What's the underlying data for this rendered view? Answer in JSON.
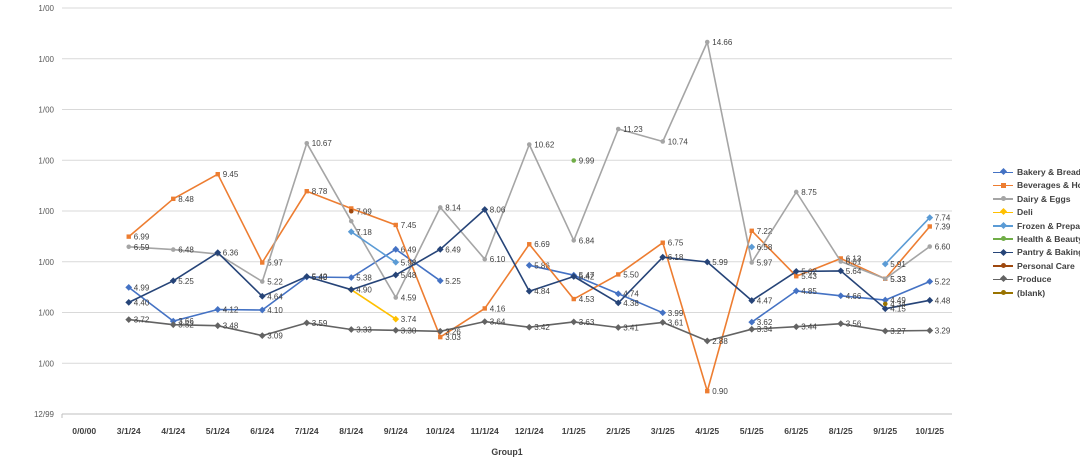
{
  "page": {
    "background": "#FFFFFF"
  },
  "chart_data": {
    "type": "line",
    "title": "",
    "xlabel": "Group1",
    "ylabel": "",
    "grid": true,
    "legend_position": "right",
    "categories": [
      "0/0/00",
      "3/1/24",
      "4/1/24",
      "5/1/24",
      "6/1/24",
      "7/1/24",
      "8/1/24",
      "9/1/24",
      "10/1/24",
      "11/1/24",
      "12/1/24",
      "1/1/25",
      "2/1/25",
      "3/1/25",
      "4/1/25",
      "5/1/25",
      "6/1/25",
      "8/1/25",
      "9/1/25",
      "10/1/25"
    ],
    "y_axis": {
      "min": 0,
      "max": 16,
      "tick_step": 2,
      "tick_labels_top_to_bottom": [
        "1/00",
        "1/00",
        "1/00",
        "1/00",
        "1/00",
        "1/00",
        "1/00",
        "1/00",
        "12/99"
      ]
    },
    "series": [
      {
        "name": "Bakery & Bread",
        "color": "#4472C4",
        "marker": "diamond",
        "values": [
          null,
          4.99,
          3.66,
          4.12,
          4.1,
          5.4,
          5.38,
          6.49,
          5.25,
          null,
          5.86,
          5.47,
          4.74,
          3.99,
          null,
          3.62,
          4.85,
          4.66,
          4.49,
          5.22
        ],
        "label_skip": []
      },
      {
        "name": "Beverages & Household",
        "color": "#ED7D31",
        "marker": "square",
        "values": [
          null,
          6.99,
          8.48,
          9.45,
          5.97,
          8.78,
          8.1,
          7.45,
          3.03,
          4.16,
          6.69,
          4.53,
          5.5,
          6.75,
          0.9,
          7.22,
          5.43,
          6.13,
          5.33,
          7.39
        ],
        "label_skip": [
          6
        ]
      },
      {
        "name": "Dairy & Eggs",
        "color": "#A5A5A5",
        "marker": "circle",
        "values": [
          null,
          6.59,
          6.48,
          6.3,
          5.22,
          10.67,
          7.6,
          4.59,
          8.14,
          6.1,
          10.62,
          6.84,
          11.23,
          10.74,
          14.66,
          5.97,
          8.75,
          6.01,
          5.33,
          6.6
        ],
        "label_skip": [
          3,
          6
        ]
      },
      {
        "name": "Deli",
        "color": "#FFC000",
        "marker": "diamond",
        "values": [
          null,
          null,
          null,
          null,
          null,
          null,
          4.9,
          3.74,
          null,
          null,
          null,
          null,
          null,
          null,
          null,
          null,
          null,
          null,
          null,
          null
        ],
        "label_skip": [
          6
        ]
      },
      {
        "name": "Frozen & Prepared",
        "color": "#5B9BD5",
        "marker": "diamond",
        "values": [
          null,
          null,
          null,
          null,
          null,
          null,
          7.18,
          5.98,
          null,
          null,
          null,
          null,
          null,
          null,
          null,
          6.58,
          null,
          null,
          5.91,
          7.74
        ],
        "label_skip": []
      },
      {
        "name": "Health & Beauty",
        "color": "#70AD47",
        "marker": "circle",
        "values": [
          null,
          null,
          null,
          null,
          null,
          null,
          null,
          null,
          null,
          null,
          null,
          9.99,
          null,
          null,
          null,
          null,
          null,
          null,
          null,
          null
        ],
        "label_skip": []
      },
      {
        "name": "Pantry & Baking",
        "color": "#264478",
        "marker": "diamond",
        "values": [
          null,
          4.4,
          5.25,
          6.36,
          4.64,
          5.42,
          4.9,
          5.48,
          6.49,
          8.06,
          4.84,
          5.42,
          4.38,
          6.18,
          5.99,
          4.47,
          5.62,
          5.64,
          4.15,
          4.48
        ],
        "label_skip": []
      },
      {
        "name": "Personal Care",
        "color": "#9E480E",
        "marker": "circle",
        "values": [
          null,
          null,
          null,
          null,
          null,
          null,
          7.99,
          null,
          null,
          null,
          null,
          null,
          null,
          null,
          null,
          null,
          null,
          null,
          null,
          null
        ],
        "label_skip": []
      },
      {
        "name": "Produce",
        "color": "#636363",
        "marker": "diamond",
        "values": [
          null,
          3.72,
          3.52,
          3.48,
          3.09,
          3.59,
          3.33,
          3.3,
          3.26,
          3.64,
          3.42,
          3.63,
          3.41,
          3.61,
          2.88,
          3.34,
          3.44,
          3.56,
          3.27,
          3.29
        ],
        "label_skip": []
      },
      {
        "name": "(blank)",
        "color": "#997300",
        "marker": "circle",
        "values": [
          null,
          null,
          null,
          null,
          null,
          null,
          null,
          null,
          null,
          null,
          null,
          null,
          null,
          null,
          null,
          null,
          null,
          null,
          4.34,
          null
        ],
        "label_skip": []
      }
    ]
  },
  "styles": {
    "gridline_color": "#D9D9D9",
    "axis_line_color": "#BFBFBF",
    "tick_label_color": "#595959",
    "category_label_color": "#404040",
    "data_label_color": "#404040"
  }
}
